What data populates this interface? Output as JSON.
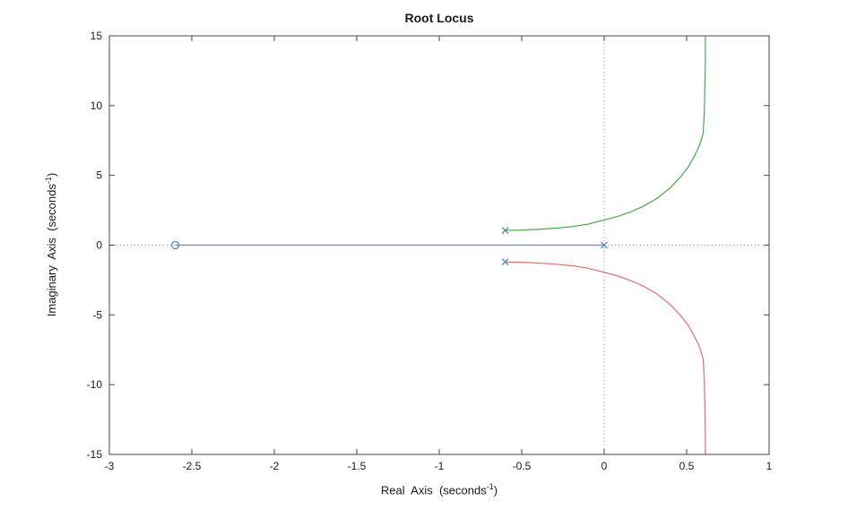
{
  "title": "Root Locus",
  "chart_data": {
    "type": "line",
    "title": "Root Locus",
    "xlabel": {
      "prefix": "Real  Axis  (seconds",
      "sup": "-1",
      "suffix": ")"
    },
    "ylabel": {
      "prefix": "Imaginary  Axis  (seconds",
      "sup": "-1",
      "suffix": ")"
    },
    "xlim": [
      -3,
      1
    ],
    "ylim": [
      -15,
      15
    ],
    "xticks": [
      -3,
      -2.5,
      -2,
      -1.5,
      -1,
      -0.5,
      0,
      0.5,
      1
    ],
    "yticks": [
      -15,
      -10,
      -5,
      0,
      5,
      10,
      15
    ],
    "grid": false,
    "zero_axes_dotted": true,
    "legend": "none",
    "colors": {
      "real_branch": "#5b8fd4",
      "upper_branch": "#4ca64c",
      "lower_branch": "#e66c6c",
      "markers": "#4a7fc9",
      "zero_line": "#9a9a9a",
      "frame": "#444444"
    },
    "series": [
      {
        "name": "real-axis-branch",
        "color_key": "real_branch",
        "points": [
          [
            -2.6,
            0
          ],
          [
            0,
            0
          ]
        ]
      },
      {
        "name": "upper-complex-branch",
        "color_key": "upper_branch",
        "points": [
          [
            -0.6,
            1.05
          ],
          [
            -0.5,
            1.08
          ],
          [
            -0.4,
            1.13
          ],
          [
            -0.3,
            1.21
          ],
          [
            -0.2,
            1.32
          ],
          [
            -0.1,
            1.5
          ],
          [
            0.0,
            1.8
          ],
          [
            0.08,
            2.05
          ],
          [
            0.16,
            2.38
          ],
          [
            0.24,
            2.8
          ],
          [
            0.32,
            3.35
          ],
          [
            0.4,
            4.1
          ],
          [
            0.46,
            4.85
          ],
          [
            0.51,
            5.6
          ],
          [
            0.55,
            6.45
          ],
          [
            0.58,
            7.2
          ],
          [
            0.6,
            8.0
          ],
          [
            0.607,
            9.5
          ],
          [
            0.611,
            11.5
          ],
          [
            0.613,
            13.0
          ],
          [
            0.614,
            15.0
          ]
        ]
      },
      {
        "name": "lower-complex-branch",
        "color_key": "lower_branch",
        "points": [
          [
            -0.6,
            -1.2
          ],
          [
            -0.5,
            -1.23
          ],
          [
            -0.4,
            -1.28
          ],
          [
            -0.3,
            -1.36
          ],
          [
            -0.2,
            -1.47
          ],
          [
            -0.1,
            -1.65
          ],
          [
            0.0,
            -1.95
          ],
          [
            0.08,
            -2.2
          ],
          [
            0.16,
            -2.53
          ],
          [
            0.24,
            -2.95
          ],
          [
            0.32,
            -3.5
          ],
          [
            0.4,
            -4.25
          ],
          [
            0.46,
            -5.0
          ],
          [
            0.51,
            -5.75
          ],
          [
            0.55,
            -6.6
          ],
          [
            0.58,
            -7.35
          ],
          [
            0.6,
            -8.15
          ],
          [
            0.607,
            -9.6
          ],
          [
            0.611,
            -11.6
          ],
          [
            0.613,
            -13.0
          ],
          [
            0.614,
            -15.0
          ]
        ]
      }
    ],
    "markers": {
      "zeros": [
        [
          -2.6,
          0
        ]
      ],
      "poles": [
        [
          -0.6,
          1.05
        ],
        [
          -0.6,
          -1.2
        ],
        [
          0,
          0
        ]
      ]
    }
  }
}
